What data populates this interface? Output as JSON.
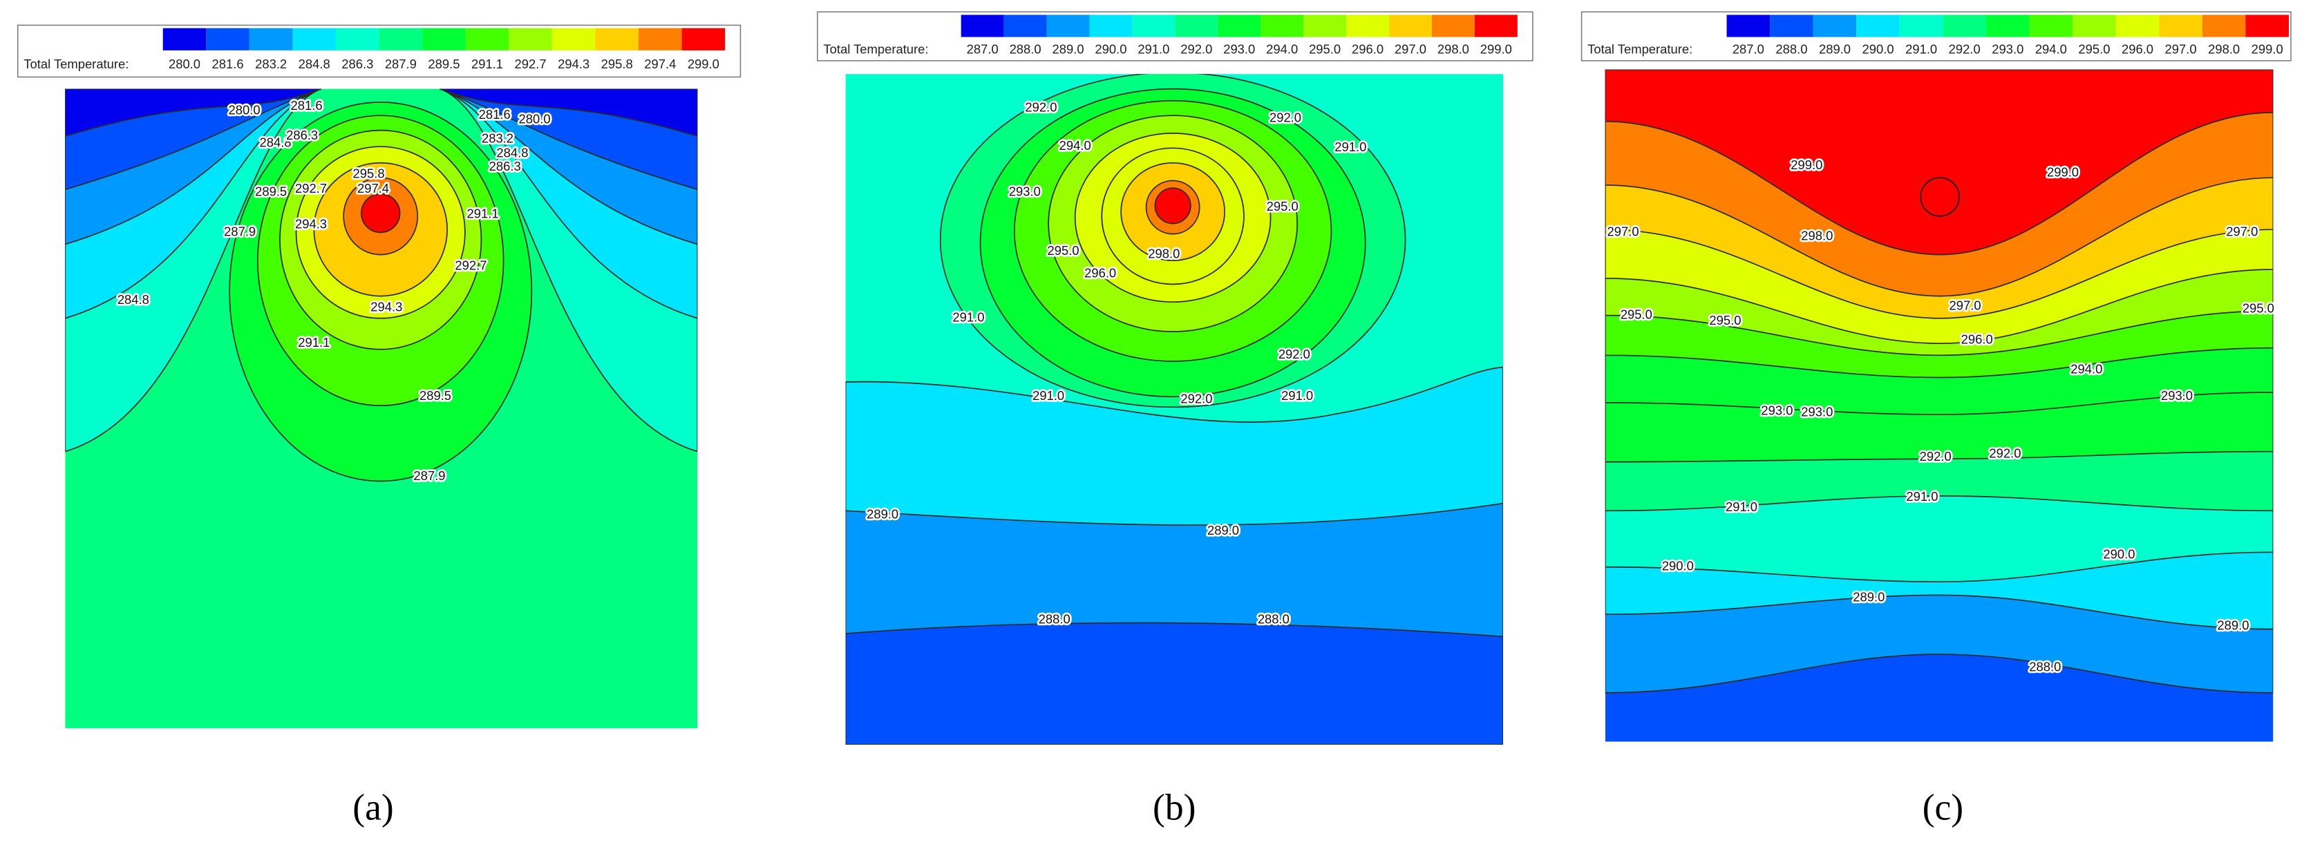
{
  "panels": [
    {
      "label": "(a)",
      "legend": {
        "title": "Total Temperature:",
        "levels": [
          "280.0",
          "281.6",
          "283.2",
          "284.8",
          "286.3",
          "287.9",
          "289.5",
          "291.1",
          "292.7",
          "294.3",
          "295.8",
          "297.4",
          "299.0"
        ],
        "colors": [
          "#0000ee",
          "#0050ff",
          "#0099ff",
          "#00e5ff",
          "#00ffcc",
          "#00ff80",
          "#00ff33",
          "#44ff00",
          "#99ff00",
          "#ddff00",
          "#ffd000",
          "#ff8000",
          "#ff0000"
        ]
      },
      "contour_labels": [
        "280.0",
        "281.6",
        "281.6",
        "280.0",
        "284.8",
        "286.3",
        "283.2",
        "284.8",
        "286.3",
        "295.8",
        "297.4",
        "289.5",
        "292.7",
        "294.3",
        "287.9",
        "291.1",
        "292.7",
        "284.8",
        "294.3",
        "291.1",
        "289.5",
        "287.9"
      ]
    },
    {
      "label": "(b)",
      "legend": {
        "title": "Total Temperature:",
        "levels": [
          "287.0",
          "288.0",
          "289.0",
          "290.0",
          "291.0",
          "292.0",
          "293.0",
          "294.0",
          "295.0",
          "296.0",
          "297.0",
          "298.0",
          "299.0"
        ],
        "colors": [
          "#0000ee",
          "#0050ff",
          "#0099ff",
          "#00e5ff",
          "#00ffcc",
          "#00ff80",
          "#00ff33",
          "#44ff00",
          "#99ff00",
          "#ddff00",
          "#ffd000",
          "#ff8000",
          "#ff0000"
        ]
      },
      "contour_labels": [
        "292.0",
        "292.0",
        "291.0",
        "294.0",
        "293.0",
        "295.0",
        "295.0",
        "296.0",
        "298.0",
        "291.0",
        "292.0",
        "291.0",
        "292.0",
        "291.0",
        "289.0",
        "289.0",
        "288.0",
        "288.0"
      ]
    },
    {
      "label": "(c)",
      "legend": {
        "title": "Total Temperature:",
        "levels": [
          "287.0",
          "288.0",
          "289.0",
          "290.0",
          "291.0",
          "292.0",
          "293.0",
          "294.0",
          "295.0",
          "296.0",
          "297.0",
          "298.0",
          "299.0"
        ],
        "colors": [
          "#0000ee",
          "#0050ff",
          "#0099ff",
          "#00e5ff",
          "#00ffcc",
          "#00ff80",
          "#00ff33",
          "#44ff00",
          "#99ff00",
          "#ddff00",
          "#ffd000",
          "#ff8000",
          "#ff0000"
        ]
      },
      "contour_labels": [
        "299.0",
        "299.0",
        "298.0",
        "297.0",
        "297.0",
        "297.0",
        "296.0",
        "295.0",
        "295.0",
        "295.0",
        "294.0",
        "293.0",
        "293.0",
        "293.0",
        "292.0",
        "292.0",
        "291.0",
        "291.0",
        "290.0",
        "290.0",
        "289.0",
        "289.0",
        "288.0"
      ]
    }
  ]
}
